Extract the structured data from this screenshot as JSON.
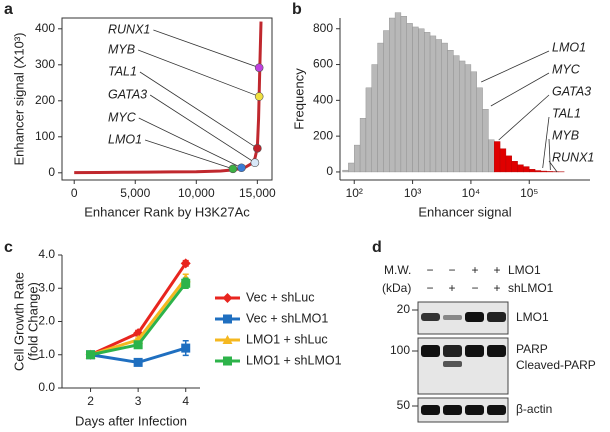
{
  "panels": [
    "a",
    "b",
    "c",
    "d"
  ],
  "chart_data": [
    {
      "type": "line",
      "x_label": "Enhancer Rank by H3K27Ac",
      "y_label": "Enhancer signal (X10³)",
      "color": "#c0282e",
      "x": [
        0,
        2000,
        4000,
        6000,
        8000,
        10000,
        11000,
        12000,
        13000,
        13500,
        14000,
        14500,
        14800,
        15000,
        15100,
        15200,
        15300
      ],
      "values": [
        0.5,
        1,
        1.5,
        2,
        2.5,
        3,
        4,
        5,
        8,
        11,
        15,
        25,
        40,
        70,
        150,
        290,
        420
      ],
      "xlim": [
        -1000,
        16200
      ],
      "ylim": [
        -20,
        430
      ],
      "xticks": [
        0,
        {
          "value": 5000,
          "label": "5,000"
        },
        {
          "value": 10000,
          "label": "10,000"
        },
        {
          "value": 15000,
          "label": "15,000"
        }
      ],
      "yticks": [
        0,
        100,
        200,
        300,
        400
      ],
      "points": [
        {
          "label": "RUNX1",
          "x": 15150,
          "y": 292,
          "color": "#c040e0"
        },
        {
          "label": "MYB",
          "x": 15150,
          "y": 212,
          "color": "#f0e040"
        },
        {
          "label": "TAL1",
          "x": 15000,
          "y": 68,
          "color": "#c0202a"
        },
        {
          "label": "GATA3",
          "x": 14800,
          "y": 28,
          "color": "#d8e8f8"
        },
        {
          "label": "MYC",
          "x": 13700,
          "y": 14,
          "color": "#3a7bd5"
        },
        {
          "label": "LMO1",
          "x": 13000,
          "y": 11,
          "color": "#3cb043"
        }
      ]
    },
    {
      "type": "histogram",
      "x_label": "Enhancer signal",
      "y_label": "Frequency",
      "log_x": true,
      "xlim": [
        57,
        1100000
      ],
      "ylim": [
        -45,
        860
      ],
      "xticks": [
        {
          "value": 100,
          "label": "10²"
        },
        {
          "value": 1000,
          "label": "10³"
        },
        {
          "value": 10000,
          "label": "10⁴"
        },
        {
          "value": 100000,
          "label": "10⁵"
        }
      ],
      "yticks": [
        0,
        200,
        400,
        600,
        800
      ],
      "series": [
        {
          "color": "#b8b8b8",
          "bins": [
            63.1,
            79.4,
            100,
            125.9,
            158.5,
            199.5,
            251.2,
            316.2,
            398.1,
            501.2,
            631,
            794.3,
            1000,
            1258.9,
            1584.9,
            1995.3,
            2511.9,
            3162.3,
            3981.1,
            5011.9,
            6309.6,
            7943.3,
            10000,
            12589,
            15849,
            19953,
            25119
          ],
          "values": [
            10,
            50,
            150,
            300,
            470,
            600,
            720,
            790,
            860,
            890,
            870,
            830,
            810,
            800,
            780,
            760,
            740,
            720,
            680,
            650,
            620,
            600,
            560,
            470,
            350,
            180
          ]
        },
        {
          "color": "#e00000",
          "bins": [
            25119,
            31623,
            39811,
            50119,
            63096,
            79433,
            100000,
            125893,
            158489,
            199526,
            251189,
            316228,
            398107
          ],
          "values": [
            170,
            130,
            90,
            60,
            40,
            30,
            15,
            8,
            5,
            3,
            2,
            1
          ]
        }
      ],
      "annotations": [
        {
          "label": "LMO1",
          "x": 15000
        },
        {
          "label": "MYC",
          "x": 22000
        },
        {
          "label": "GATA3",
          "x": 30000
        },
        {
          "label": "TAL1",
          "x": 170000
        },
        {
          "label": "MYB",
          "x": 230000
        },
        {
          "label": "RUNX1",
          "x": 300000
        }
      ]
    },
    {
      "type": "line",
      "x_label": "Days after Infection",
      "y_label": [
        "Cell Growth Rate",
        "(fold Change)"
      ],
      "x": [
        2,
        3,
        4
      ],
      "xlim": [
        1.4,
        4.3
      ],
      "ylim": [
        0,
        4
      ],
      "xticks": [
        2,
        3,
        4
      ],
      "yticks": [
        {
          "value": 0,
          "label": "0.0"
        },
        {
          "value": 1,
          "label": "1.0"
        },
        {
          "value": 2,
          "label": "2.0"
        },
        {
          "value": 3,
          "label": "3.0"
        },
        {
          "value": 4,
          "label": "4.0"
        }
      ],
      "series": [
        {
          "name": "Vec + shLuc",
          "color": "#e8251f",
          "marker": "diamond",
          "values": [
            1.0,
            1.65,
            3.75
          ],
          "errors": [
            0.05,
            0.08,
            0.08
          ]
        },
        {
          "name": "Vec + shLMO1",
          "color": "#1f6fc0",
          "marker": "square",
          "values": [
            1.0,
            0.77,
            1.2
          ],
          "errors": [
            0.03,
            0.05,
            0.22
          ]
        },
        {
          "name": "LMO1 + shLuc",
          "color": "#f5b820",
          "marker": "triangle",
          "values": [
            1.0,
            1.45,
            3.3
          ],
          "errors": [
            0.03,
            0.05,
            0.12
          ]
        },
        {
          "name": "LMO1 + shLMO1",
          "color": "#2db34a",
          "marker": "square",
          "values": [
            1.0,
            1.3,
            3.15
          ],
          "errors": [
            0.03,
            0.05,
            0.15
          ]
        }
      ]
    }
  ],
  "blot": {
    "mw_label": [
      "M.W.",
      "(kDa)"
    ],
    "rows": [
      {
        "label": "LMO1",
        "signs": [
          "−",
          "−",
          "+",
          "+"
        ]
      },
      {
        "label": "shLMO1",
        "signs": [
          "−",
          "+",
          "−",
          "+"
        ]
      }
    ],
    "markers": [
      20,
      100,
      50
    ],
    "bands": [
      "LMO1",
      "PARP",
      "Cleaved-PARP",
      "β-actin"
    ]
  }
}
